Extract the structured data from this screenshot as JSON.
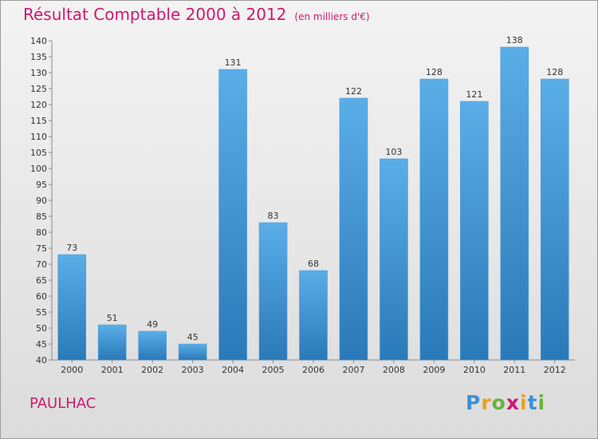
{
  "header": {
    "title": "Résultat Comptable 2000 à 2012",
    "unit": "(en milliers d'€)"
  },
  "footer": {
    "commune": "PAULHAC",
    "brand_letters": [
      "P",
      "r",
      "o",
      "x",
      "i",
      "t",
      "i"
    ]
  },
  "colors": {
    "title": "#d0186e",
    "bar_top": "#5aaee8",
    "bar_bottom": "#2a79b8",
    "axis": "#888888",
    "brand": [
      "#3d8fd6",
      "#e8a020",
      "#6ab23c",
      "#d0186e",
      "#e8a020",
      "#3d8fd6",
      "#6ab23c"
    ]
  },
  "chart_data": {
    "type": "bar",
    "title": "Résultat Comptable 2000 à 2012",
    "ylabel": "en milliers d'€",
    "xlabel": "",
    "categories": [
      "2000",
      "2001",
      "2002",
      "2003",
      "2004",
      "2005",
      "2006",
      "2007",
      "2008",
      "2009",
      "2010",
      "2011",
      "2012"
    ],
    "values": [
      73,
      51,
      49,
      45,
      131,
      83,
      68,
      122,
      103,
      128,
      121,
      138,
      128
    ],
    "ylim": [
      40,
      140
    ],
    "ytick_step": 5,
    "grid": false
  }
}
